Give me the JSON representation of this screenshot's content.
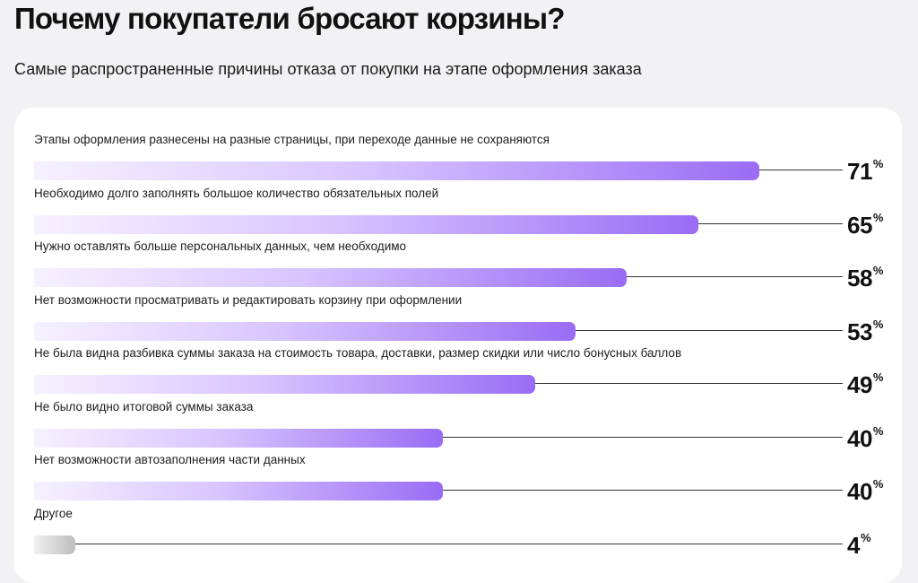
{
  "title": "Почему покупатели бросают корзины?",
  "subtitle": "Самые распространенные причины отказа от покупки на этапе оформления заказа",
  "colors": {
    "bar_start": "#f6f1ff",
    "bar_end": "#9a6cf5",
    "other_bar": "#bdbdbd",
    "line": "#333333"
  },
  "chart_data": {
    "type": "bar",
    "orientation": "horizontal",
    "title": "Почему покупатели бросают корзины?",
    "subtitle": "Самые распространенные причины отказа от покупки на этапе оформления заказа",
    "unit": "%",
    "xlim": [
      0,
      100
    ],
    "grid": false,
    "categories": [
      "Этапы оформления разнесены на разные страницы, при переходе данные не сохраняются",
      "Необходимо долго заполнять большое количество обязательных полей",
      "Нужно оставлять больше персональных данных, чем необходимо",
      "Нет возможности просматривать и редактировать корзину при оформлении",
      "Не была видна разбивка суммы заказа на стоимость товара, доставки, размер скидки или число бонусных баллов",
      "Не было видно итоговой суммы заказа",
      "Нет возможности автозаполнения части данных",
      "Другое"
    ],
    "values": [
      71,
      65,
      58,
      53,
      49,
      40,
      40,
      4
    ]
  }
}
